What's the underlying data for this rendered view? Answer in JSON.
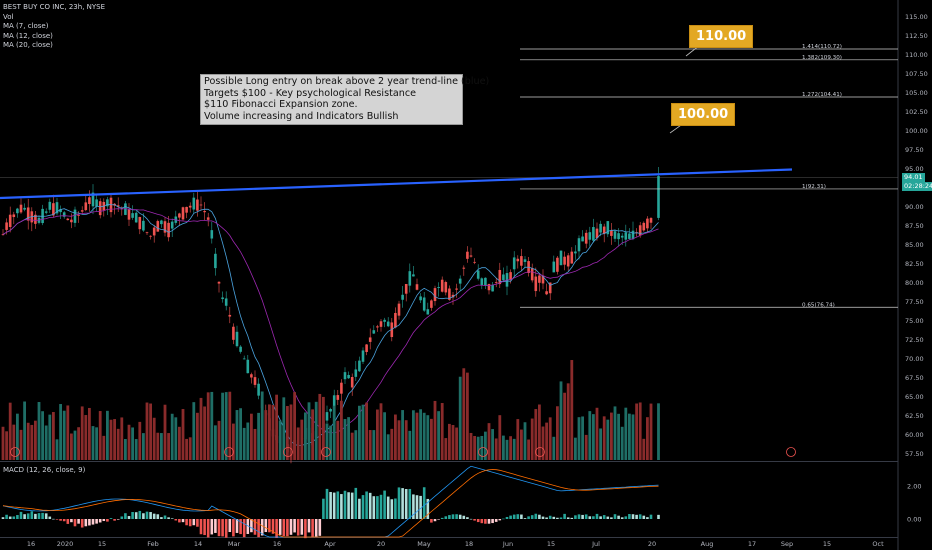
{
  "header": {
    "symbol_line": "BEST BUY CO INC, 23h, NYSE",
    "indicators": [
      "Vol",
      "MA (7, close)",
      "MA (12, close)",
      "MA (20, close)"
    ]
  },
  "macd_label": "MACD (12, 26, close, 9)",
  "annotation": {
    "lines": [
      "Possible Long entry on break above 2 year trend-line (blue)",
      "Targets $100 - Key psychological Resistance",
      "$110 Fibonacci Expansion zone.",
      "Volume increasing and Indicators Bullish"
    ]
  },
  "callouts": {
    "target_110": "110.00",
    "target_100": "100.00"
  },
  "fib_levels": [
    {
      "label": "1.414(110.72)",
      "price": 110.72
    },
    {
      "label": "1.382(109.30)",
      "price": 109.3
    },
    {
      "label": "1.272(104.41)",
      "price": 104.41
    },
    {
      "label": "1(92.31)",
      "price": 92.31
    },
    {
      "label": "0.65(76.74)",
      "price": 76.74
    }
  ],
  "price_axis": [
    "115.00",
    "112.50",
    "110.00",
    "107.50",
    "105.00",
    "102.50",
    "100.00",
    "97.50",
    "95.00",
    "92.50",
    "90.00",
    "87.50",
    "85.00",
    "82.50",
    "80.00",
    "77.50",
    "75.00",
    "72.50",
    "70.00",
    "67.50",
    "65.00",
    "62.50",
    "60.00",
    "57.50"
  ],
  "macd_axis": [
    "2.00",
    "0.00"
  ],
  "last_price": "94.01",
  "countdown": "02:28:24",
  "time_axis": [
    "16",
    "2020",
    "15",
    "Feb",
    "14",
    "Mar",
    "16",
    "Apr",
    "20",
    "May",
    "18",
    "Jun",
    "15",
    "Jul",
    "20",
    "Aug",
    "17",
    "Sep",
    "15",
    "Oct"
  ],
  "colors": {
    "up": "#26a69a",
    "down": "#ef5350",
    "trendline": "#2962ff",
    "ma7": "#4aa3df",
    "ma20": "#9c27b0",
    "macd": "#2196f3",
    "signal": "#ff6d00",
    "callout": "#e3a823"
  }
}
